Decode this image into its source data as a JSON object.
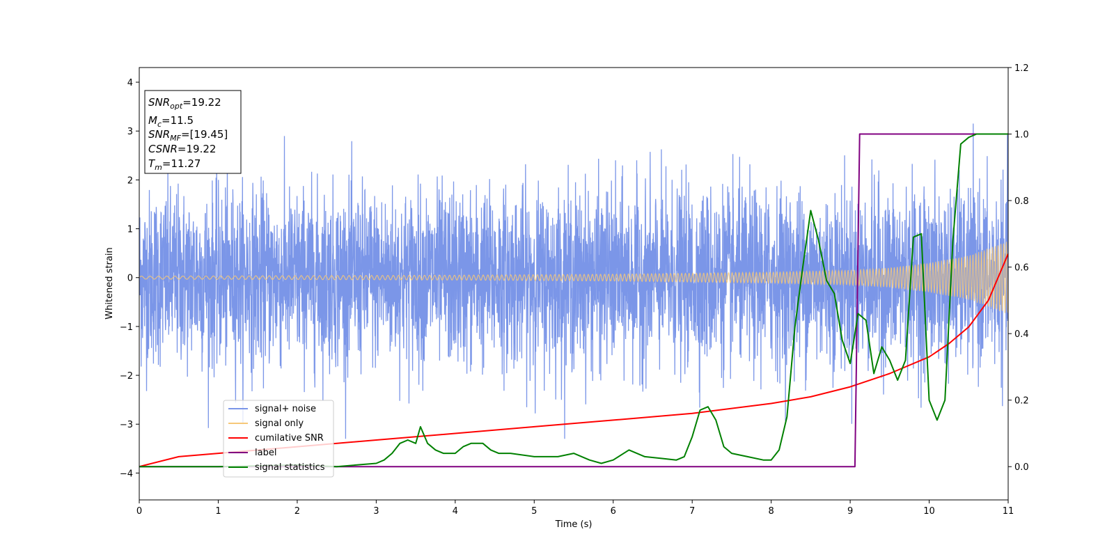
{
  "chart_data": {
    "type": "line",
    "xlabel": "Time (s)",
    "ylabel": "Whitened strain",
    "xlim": [
      0,
      11
    ],
    "ylim_left": [
      -4.55,
      4.3
    ],
    "ylim_right": [
      -0.1,
      1.2
    ],
    "x_ticks": [
      0,
      1,
      2,
      3,
      4,
      5,
      6,
      7,
      8,
      9,
      10,
      11
    ],
    "y_left_ticks": [
      -4,
      -3,
      -2,
      -1,
      0,
      1,
      2,
      3,
      4
    ],
    "y_right_ticks": [
      "0.0",
      "0.2",
      "0.4",
      "0.6",
      "0.8",
      "1.0",
      "1.2"
    ],
    "grid": false,
    "info_box": {
      "snr_opt": {
        "main": "SNR",
        "sub": "opt",
        "value": "=19.22"
      },
      "mc": {
        "main": "M",
        "sub": "c",
        "value": "=11.5"
      },
      "snr_mf": {
        "main": "SNR",
        "sub": "MF",
        "value": "=[19.45]"
      },
      "csnr": {
        "main": "CSNR",
        "value": "=19.22"
      },
      "tm": {
        "main": "T",
        "sub": "m",
        "value": "=11.27"
      }
    },
    "legend": {
      "placement": "lower-left",
      "entries": [
        {
          "label": "signal+ noise",
          "color": "#7b96e8"
        },
        {
          "label": "signal only",
          "color": "#f6c878"
        },
        {
          "label": "cumilative SNR",
          "color": "#ff0000"
        },
        {
          "label": "label",
          "color": "#800080"
        },
        {
          "label": "signal statistics",
          "color": "#008000"
        }
      ]
    },
    "series": [
      {
        "name": "signal+ noise",
        "axis": "left",
        "color": "#7b96e8",
        "description_envelope": {
          "typical_amplitude": 2.3,
          "max_peak": 3.4,
          "min_peak": -3.3
        }
      },
      {
        "name": "signal only",
        "axis": "left",
        "color": "#f6c878",
        "envelope_x": [
          0,
          2,
          4,
          6,
          7,
          8,
          9,
          9.5,
          10,
          10.5,
          11
        ],
        "envelope_y": [
          0.03,
          0.04,
          0.05,
          0.07,
          0.09,
          0.11,
          0.15,
          0.2,
          0.3,
          0.45,
          0.75
        ]
      },
      {
        "name": "cumilative SNR",
        "axis": "right",
        "color": "#ff0000",
        "x": [
          0,
          0.5,
          1,
          2,
          3,
          4,
          5,
          6,
          7,
          8,
          8.5,
          9,
          9.5,
          10,
          10.25,
          10.5,
          10.75,
          11
        ],
        "y": [
          0.0,
          0.03,
          0.04,
          0.06,
          0.08,
          0.1,
          0.12,
          0.14,
          0.16,
          0.19,
          0.21,
          0.24,
          0.28,
          0.33,
          0.37,
          0.42,
          0.5,
          0.64
        ]
      },
      {
        "name": "label",
        "axis": "right",
        "color": "#800080",
        "x": [
          0,
          9.06,
          9.12,
          11
        ],
        "y": [
          0,
          0,
          1,
          1
        ]
      },
      {
        "name": "signal statistics",
        "axis": "right",
        "color": "#008000",
        "x": [
          0,
          1,
          2,
          2.5,
          3,
          3.1,
          3.2,
          3.3,
          3.4,
          3.5,
          3.56,
          3.65,
          3.75,
          3.85,
          4,
          4.1,
          4.2,
          4.35,
          4.45,
          4.55,
          4.7,
          5,
          5.3,
          5.5,
          5.7,
          5.85,
          6,
          6.2,
          6.4,
          6.6,
          6.8,
          6.9,
          7,
          7.1,
          7.2,
          7.3,
          7.4,
          7.5,
          7.7,
          7.9,
          8,
          8.1,
          8.2,
          8.3,
          8.4,
          8.5,
          8.6,
          8.7,
          8.8,
          8.9,
          9.0,
          9.1,
          9.2,
          9.3,
          9.4,
          9.5,
          9.6,
          9.7,
          9.8,
          9.9,
          10.0,
          10.1,
          10.2,
          10.3,
          10.4,
          10.5,
          10.6,
          10.8,
          11
        ],
        "y": [
          0.0,
          0.0,
          0.005,
          0.0,
          0.01,
          0.02,
          0.04,
          0.07,
          0.08,
          0.07,
          0.12,
          0.07,
          0.05,
          0.04,
          0.04,
          0.06,
          0.07,
          0.07,
          0.05,
          0.04,
          0.04,
          0.03,
          0.03,
          0.04,
          0.02,
          0.01,
          0.02,
          0.05,
          0.03,
          0.025,
          0.02,
          0.03,
          0.09,
          0.17,
          0.18,
          0.14,
          0.06,
          0.04,
          0.03,
          0.02,
          0.02,
          0.05,
          0.15,
          0.42,
          0.6,
          0.77,
          0.68,
          0.56,
          0.52,
          0.38,
          0.31,
          0.46,
          0.44,
          0.28,
          0.36,
          0.32,
          0.26,
          0.32,
          0.69,
          0.7,
          0.2,
          0.14,
          0.2,
          0.68,
          0.97,
          0.99,
          1.0,
          1.0,
          1.0
        ]
      }
    ]
  }
}
